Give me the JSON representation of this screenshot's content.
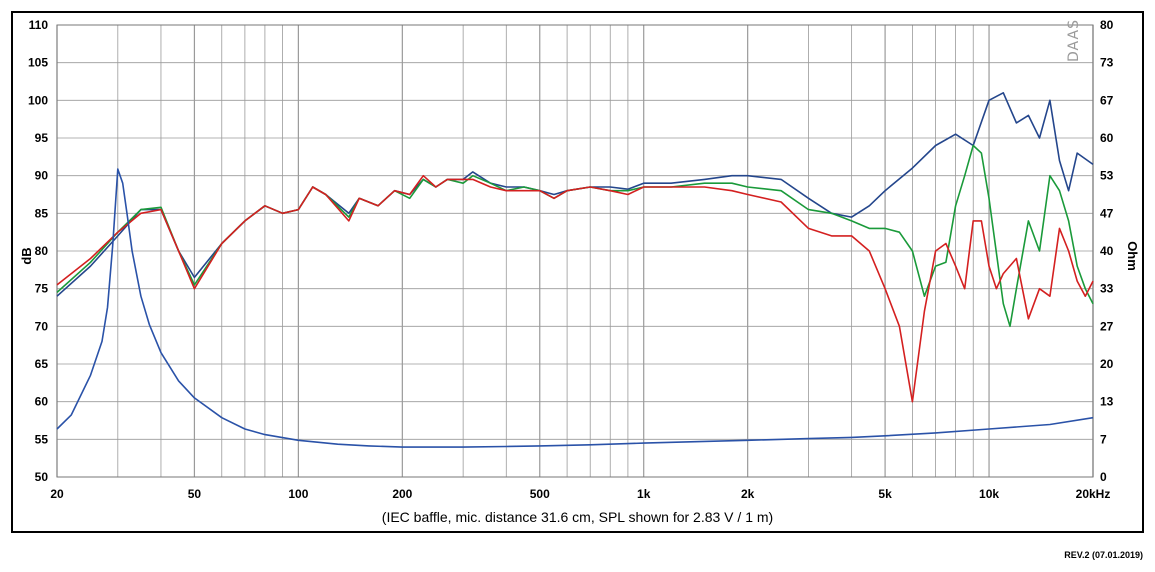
{
  "chart_data": {
    "type": "line",
    "caption": "(IEC baffle, mic. distance 31.6 cm, SPL shown for 2.83 V / 1 m)",
    "watermark": "DAAS",
    "revision": "REV.2 (07.01.2019)",
    "xlabel_unit": "kHz",
    "ylabel_left": "dB",
    "ylabel_right": "Ohm",
    "xscale": "log",
    "xlim": [
      20,
      20000
    ],
    "ylim_left": [
      50,
      110
    ],
    "ylim_right": [
      0,
      80
    ],
    "x_ticks": [
      {
        "v": 20,
        "label": "20"
      },
      {
        "v": 50,
        "label": "50"
      },
      {
        "v": 100,
        "label": "100"
      },
      {
        "v": 200,
        "label": "200"
      },
      {
        "v": 500,
        "label": "500"
      },
      {
        "v": 1000,
        "label": "1k"
      },
      {
        "v": 2000,
        "label": "2k"
      },
      {
        "v": 5000,
        "label": "5k"
      },
      {
        "v": 10000,
        "label": "10k"
      },
      {
        "v": 20000,
        "label": "20kHz"
      }
    ],
    "y_ticks_left": [
      "110",
      "105",
      "100",
      "95",
      "90",
      "85",
      "80",
      "75",
      "70",
      "65",
      "60",
      "55",
      "50"
    ],
    "y_ticks_right": [
      "80",
      "73",
      "67",
      "60",
      "53",
      "47",
      "40",
      "33",
      "27",
      "20",
      "13",
      "7",
      "0"
    ],
    "grid": true,
    "colors": {
      "red": "#d42020",
      "green": "#1a9a3a",
      "blue_spl": "#24468c",
      "blue_imp": "#2a52a8",
      "grid": "#9a9a9a"
    },
    "series": [
      {
        "color": "#24468c",
        "axis": "left",
        "points": [
          [
            20,
            74
          ],
          [
            25,
            78
          ],
          [
            30,
            82
          ],
          [
            35,
            85.5
          ],
          [
            40,
            85.5
          ],
          [
            45,
            80
          ],
          [
            50,
            76.5
          ],
          [
            60,
            81
          ],
          [
            70,
            84
          ],
          [
            80,
            86
          ],
          [
            90,
            85
          ],
          [
            100,
            85.5
          ],
          [
            110,
            88.5
          ],
          [
            120,
            87.5
          ],
          [
            140,
            85
          ],
          [
            150,
            87
          ],
          [
            170,
            86
          ],
          [
            190,
            88
          ],
          [
            210,
            87.5
          ],
          [
            230,
            89.5
          ],
          [
            250,
            88.5
          ],
          [
            270,
            89.5
          ],
          [
            300,
            89.5
          ],
          [
            320,
            90.5
          ],
          [
            360,
            89
          ],
          [
            400,
            88.5
          ],
          [
            450,
            88.5
          ],
          [
            500,
            88
          ],
          [
            550,
            87.5
          ],
          [
            600,
            88
          ],
          [
            700,
            88.5
          ],
          [
            800,
            88.5
          ],
          [
            900,
            88.2
          ],
          [
            1000,
            89
          ],
          [
            1200,
            89
          ],
          [
            1500,
            89.5
          ],
          [
            1800,
            90
          ],
          [
            2000,
            90
          ],
          [
            2500,
            89.5
          ],
          [
            3000,
            87
          ],
          [
            3500,
            85
          ],
          [
            4000,
            84.5
          ],
          [
            4500,
            86
          ],
          [
            5000,
            88
          ],
          [
            6000,
            91
          ],
          [
            7000,
            94
          ],
          [
            8000,
            95.5
          ],
          [
            9000,
            94
          ],
          [
            10000,
            100
          ],
          [
            11000,
            101
          ],
          [
            12000,
            97
          ],
          [
            13000,
            98
          ],
          [
            14000,
            95
          ],
          [
            15000,
            100
          ],
          [
            16000,
            92
          ],
          [
            17000,
            88
          ],
          [
            18000,
            93
          ],
          [
            20000,
            91.5
          ]
        ]
      },
      {
        "color": "#1a9a3a",
        "axis": "left",
        "points": [
          [
            20,
            74.5
          ],
          [
            25,
            78.5
          ],
          [
            30,
            82.5
          ],
          [
            35,
            85.5
          ],
          [
            40,
            85.8
          ],
          [
            45,
            80
          ],
          [
            50,
            75.5
          ],
          [
            60,
            81
          ],
          [
            70,
            84
          ],
          [
            80,
            86
          ],
          [
            90,
            85
          ],
          [
            100,
            85.5
          ],
          [
            110,
            88.5
          ],
          [
            120,
            87.5
          ],
          [
            140,
            84.5
          ],
          [
            150,
            87
          ],
          [
            170,
            86
          ],
          [
            190,
            88
          ],
          [
            210,
            87
          ],
          [
            230,
            89.5
          ],
          [
            250,
            88.5
          ],
          [
            270,
            89.5
          ],
          [
            300,
            89
          ],
          [
            320,
            90
          ],
          [
            360,
            89
          ],
          [
            400,
            88
          ],
          [
            450,
            88.5
          ],
          [
            500,
            88
          ],
          [
            550,
            87
          ],
          [
            600,
            88
          ],
          [
            700,
            88.5
          ],
          [
            800,
            88
          ],
          [
            900,
            88
          ],
          [
            1000,
            88.5
          ],
          [
            1200,
            88.5
          ],
          [
            1500,
            89
          ],
          [
            1800,
            89
          ],
          [
            2000,
            88.5
          ],
          [
            2500,
            88
          ],
          [
            3000,
            85.5
          ],
          [
            3500,
            85
          ],
          [
            4000,
            84
          ],
          [
            4500,
            83
          ],
          [
            5000,
            83
          ],
          [
            5500,
            82.5
          ],
          [
            6000,
            80
          ],
          [
            6500,
            74
          ],
          [
            7000,
            78
          ],
          [
            7500,
            78.5
          ],
          [
            8000,
            86
          ],
          [
            8500,
            90
          ],
          [
            9000,
            94
          ],
          [
            9500,
            93
          ],
          [
            10000,
            87
          ],
          [
            11000,
            73
          ],
          [
            11500,
            70
          ],
          [
            12000,
            75
          ],
          [
            13000,
            84
          ],
          [
            14000,
            80
          ],
          [
            15000,
            90
          ],
          [
            16000,
            88
          ],
          [
            17000,
            84
          ],
          [
            18000,
            78
          ],
          [
            19000,
            75
          ],
          [
            20000,
            73
          ]
        ]
      },
      {
        "color": "#d42020",
        "axis": "left",
        "points": [
          [
            20,
            75.5
          ],
          [
            25,
            79
          ],
          [
            30,
            82.5
          ],
          [
            35,
            85
          ],
          [
            40,
            85.5
          ],
          [
            45,
            80
          ],
          [
            50,
            75
          ],
          [
            60,
            81
          ],
          [
            70,
            84
          ],
          [
            80,
            86
          ],
          [
            90,
            85
          ],
          [
            100,
            85.5
          ],
          [
            110,
            88.5
          ],
          [
            120,
            87.5
          ],
          [
            140,
            84
          ],
          [
            150,
            87
          ],
          [
            170,
            86
          ],
          [
            190,
            88
          ],
          [
            210,
            87.5
          ],
          [
            230,
            90
          ],
          [
            250,
            88.5
          ],
          [
            270,
            89.5
          ],
          [
            300,
            89.5
          ],
          [
            320,
            89.5
          ],
          [
            360,
            88.5
          ],
          [
            400,
            88
          ],
          [
            450,
            88
          ],
          [
            500,
            88
          ],
          [
            550,
            87
          ],
          [
            600,
            88
          ],
          [
            700,
            88.5
          ],
          [
            800,
            88
          ],
          [
            900,
            87.5
          ],
          [
            1000,
            88.5
          ],
          [
            1200,
            88.5
          ],
          [
            1500,
            88.5
          ],
          [
            1800,
            88
          ],
          [
            2000,
            87.5
          ],
          [
            2500,
            86.5
          ],
          [
            3000,
            83
          ],
          [
            3500,
            82
          ],
          [
            4000,
            82
          ],
          [
            4500,
            80
          ],
          [
            5000,
            75
          ],
          [
            5500,
            70
          ],
          [
            6000,
            60
          ],
          [
            6500,
            72
          ],
          [
            7000,
            80
          ],
          [
            7500,
            81
          ],
          [
            8000,
            78
          ],
          [
            8500,
            75
          ],
          [
            9000,
            84
          ],
          [
            9500,
            84
          ],
          [
            10000,
            78
          ],
          [
            10500,
            75
          ],
          [
            11000,
            77
          ],
          [
            12000,
            79
          ],
          [
            13000,
            71
          ],
          [
            14000,
            75
          ],
          [
            15000,
            74
          ],
          [
            16000,
            83
          ],
          [
            17000,
            80
          ],
          [
            18000,
            76
          ],
          [
            19000,
            74
          ],
          [
            20000,
            76
          ]
        ]
      },
      {
        "color": "#2a52a8",
        "axis": "right",
        "name_hidden": true,
        "points": [
          [
            20,
            8.5
          ],
          [
            22,
            11
          ],
          [
            25,
            18
          ],
          [
            27,
            24
          ],
          [
            28,
            30
          ],
          [
            29,
            41
          ],
          [
            30,
            54.5
          ],
          [
            31,
            52
          ],
          [
            32,
            46
          ],
          [
            33,
            40
          ],
          [
            35,
            32
          ],
          [
            37,
            27
          ],
          [
            40,
            22
          ],
          [
            45,
            17
          ],
          [
            50,
            14
          ],
          [
            60,
            10.5
          ],
          [
            70,
            8.5
          ],
          [
            80,
            7.5
          ],
          [
            100,
            6.5
          ],
          [
            130,
            5.8
          ],
          [
            160,
            5.5
          ],
          [
            200,
            5.3
          ],
          [
            300,
            5.3
          ],
          [
            400,
            5.4
          ],
          [
            500,
            5.5
          ],
          [
            700,
            5.7
          ],
          [
            1000,
            6
          ],
          [
            1500,
            6.3
          ],
          [
            2000,
            6.5
          ],
          [
            3000,
            6.8
          ],
          [
            4000,
            7
          ],
          [
            5000,
            7.3
          ],
          [
            7000,
            7.8
          ],
          [
            10000,
            8.5
          ],
          [
            15000,
            9.3
          ],
          [
            20000,
            10.5
          ]
        ]
      }
    ]
  }
}
